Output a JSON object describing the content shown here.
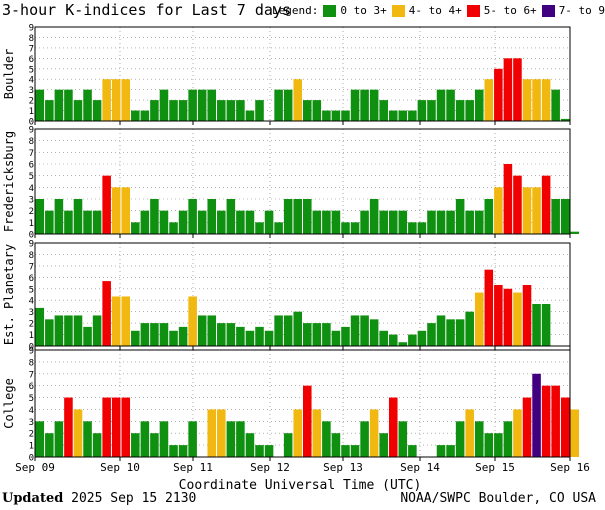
{
  "header": {
    "title": "3-hour K-indices for Last 7 days",
    "legend_label": "Legend:",
    "legend": [
      {
        "label": "0 to 3+",
        "color": "#109010"
      },
      {
        "label": "4- to 4+",
        "color": "#F0B810"
      },
      {
        "label": "5- to 6+",
        "color": "#F00000"
      },
      {
        "label": "7- to 9",
        "color": "#400080"
      }
    ]
  },
  "footer": {
    "xlabel": "Coordinate Universal Time (UTC)",
    "updated_label": "Updated",
    "updated_value": " 2025 Sep 15 2130",
    "credit": "NOAA/SWPC Boulder, CO USA"
  },
  "chart_data": {
    "type": "bar",
    "x_tick_labels": [
      "Sep 09",
      "Sep 10",
      "Sep 11",
      "Sep 12",
      "Sep 13",
      "Sep 14",
      "Sep 15",
      "Sep 16"
    ],
    "ylim": [
      0,
      9
    ],
    "y_ticks": [
      0,
      1,
      2,
      3,
      4,
      5,
      6,
      7,
      8,
      9
    ],
    "color_thresholds": {
      "green_max": 3.67,
      "yellow_max": 4.67,
      "red_max": 6.67
    },
    "grid": "vertical dotted at day boundaries, horizontal dotted at each K level",
    "panels": [
      {
        "name": "Boulder",
        "values": [
          3,
          2,
          3,
          3,
          2,
          3,
          2,
          4,
          4,
          4,
          1,
          1,
          2,
          3,
          2,
          2,
          3,
          3,
          3,
          2,
          2,
          2,
          1,
          2,
          0,
          3,
          3,
          4,
          2,
          2,
          1,
          1,
          1,
          3,
          3,
          3,
          2,
          1,
          1,
          1,
          2,
          2,
          3,
          3,
          2,
          2,
          3,
          4,
          5,
          6,
          6,
          4,
          4,
          4,
          3,
          0.2
        ]
      },
      {
        "name": "Fredericksburg",
        "values": [
          3,
          2,
          3,
          2,
          3,
          2,
          2,
          5,
          4,
          4,
          1,
          2,
          3,
          2,
          1,
          2,
          3,
          2,
          3,
          2,
          3,
          2,
          2,
          1,
          2,
          1,
          3,
          3,
          3,
          2,
          2,
          2,
          1,
          1,
          2,
          3,
          2,
          2,
          2,
          1,
          1,
          2,
          2,
          2,
          3,
          2,
          2,
          3,
          4,
          6,
          5,
          4,
          4,
          5,
          3,
          3,
          0.2
        ]
      },
      {
        "name": "Est. Planetary",
        "values": [
          3.33,
          2.33,
          2.67,
          2.67,
          2.67,
          1.67,
          2.67,
          5.67,
          4.33,
          4.33,
          1.33,
          2,
          2,
          2,
          1.33,
          1.67,
          4.33,
          2.67,
          2.67,
          2,
          2,
          1.67,
          1.33,
          1.67,
          1.33,
          2.67,
          2.67,
          3,
          2,
          2,
          2,
          1.33,
          1.67,
          2.67,
          2.67,
          2.33,
          1.33,
          1,
          0.33,
          1,
          1.33,
          2,
          2.67,
          2.33,
          2.33,
          3,
          4.67,
          6.67,
          5.33,
          5,
          4.67,
          5.33,
          3.67,
          3.67
        ]
      },
      {
        "name": "College",
        "values": [
          3,
          2,
          3,
          5,
          4,
          3,
          2,
          5,
          5,
          5,
          2,
          3,
          2,
          3,
          1,
          1,
          3,
          0,
          4,
          4,
          3,
          3,
          2,
          1,
          1,
          0,
          2,
          4,
          6,
          4,
          3,
          2,
          1,
          1,
          3,
          4,
          2,
          5,
          3,
          1,
          0,
          0,
          1,
          1,
          3,
          4,
          3,
          2,
          2,
          3,
          4,
          5,
          7,
          6,
          6,
          5,
          4,
          0
        ]
      }
    ]
  }
}
